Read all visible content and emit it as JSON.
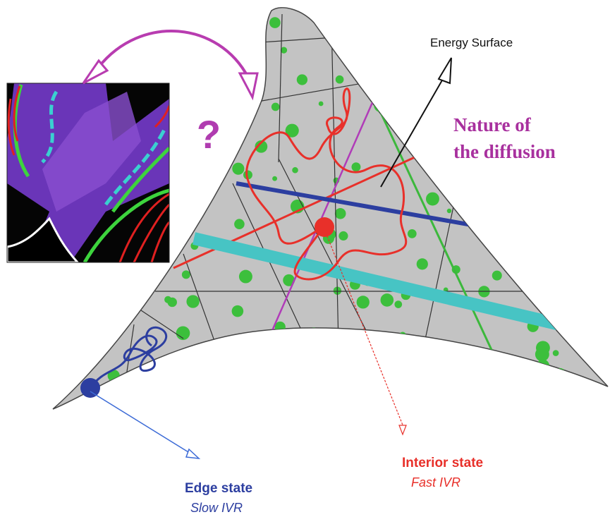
{
  "labels": {
    "energy_surface": "Energy Surface",
    "nature_line1": "Nature of",
    "nature_line2": "the diffusion",
    "question": "?",
    "interior_state": "Interior state",
    "fast_ivr": "Fast IVR",
    "edge_state": "Edge state",
    "slow_ivr": "Slow IVR"
  }
}
